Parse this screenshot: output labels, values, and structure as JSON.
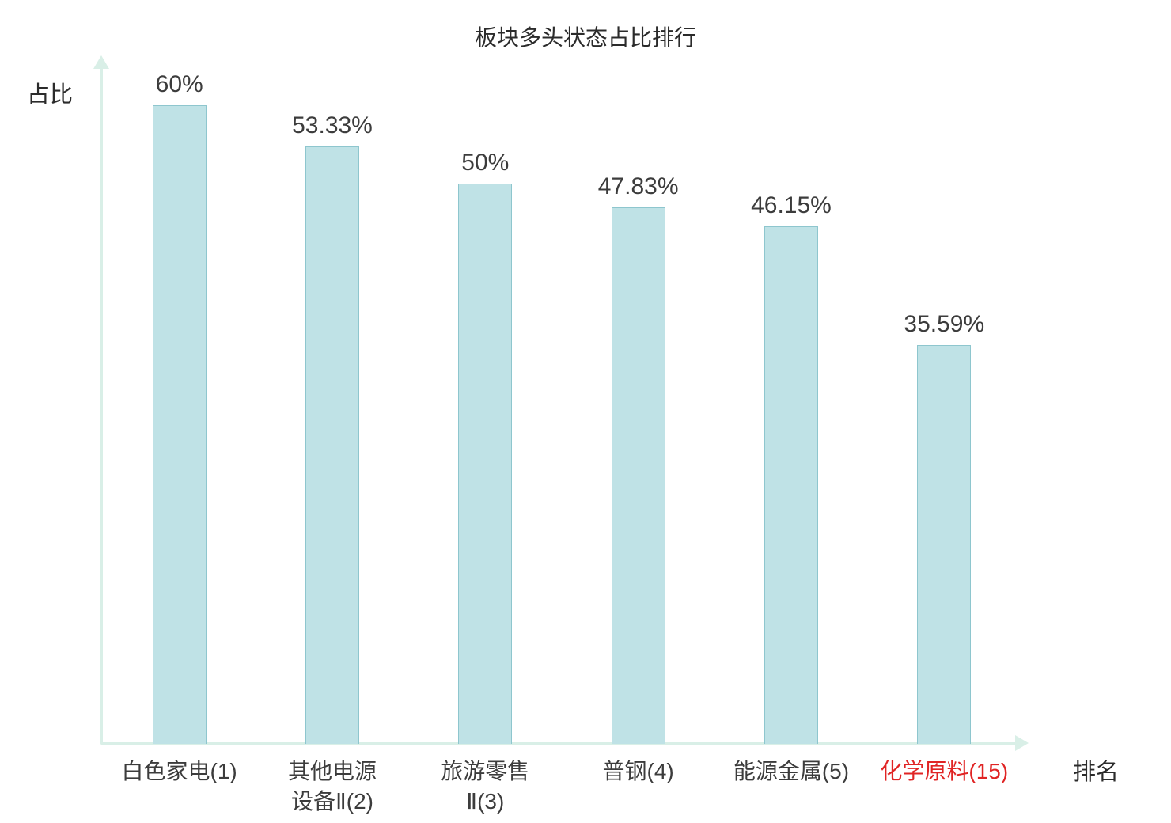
{
  "chart_data": {
    "type": "bar",
    "title": "板块多头状态占比排行",
    "xlabel": "排名",
    "ylabel": "占比",
    "categories": [
      "白色家电(1)",
      "其他电源\n设备Ⅱ(2)",
      "旅游零售\nⅡ(3)",
      "普钢(4)",
      "能源金属(5)",
      "化学原料(15)"
    ],
    "values": [
      60,
      53.33,
      50,
      47.83,
      46.15,
      35.59
    ],
    "value_labels": [
      "60%",
      "53.33%",
      "50%",
      "47.83%",
      "46.15%",
      "35.59%"
    ],
    "ylim": [
      0,
      60
    ],
    "grid": false,
    "legend": "none",
    "highlight_index": 5,
    "bar_color": "#bfe2e6",
    "bar_border_color": "#8ec6ce",
    "axis_color": "#d9efe7",
    "label_color": "#3c3c3c",
    "highlight_color": "#e02424"
  }
}
